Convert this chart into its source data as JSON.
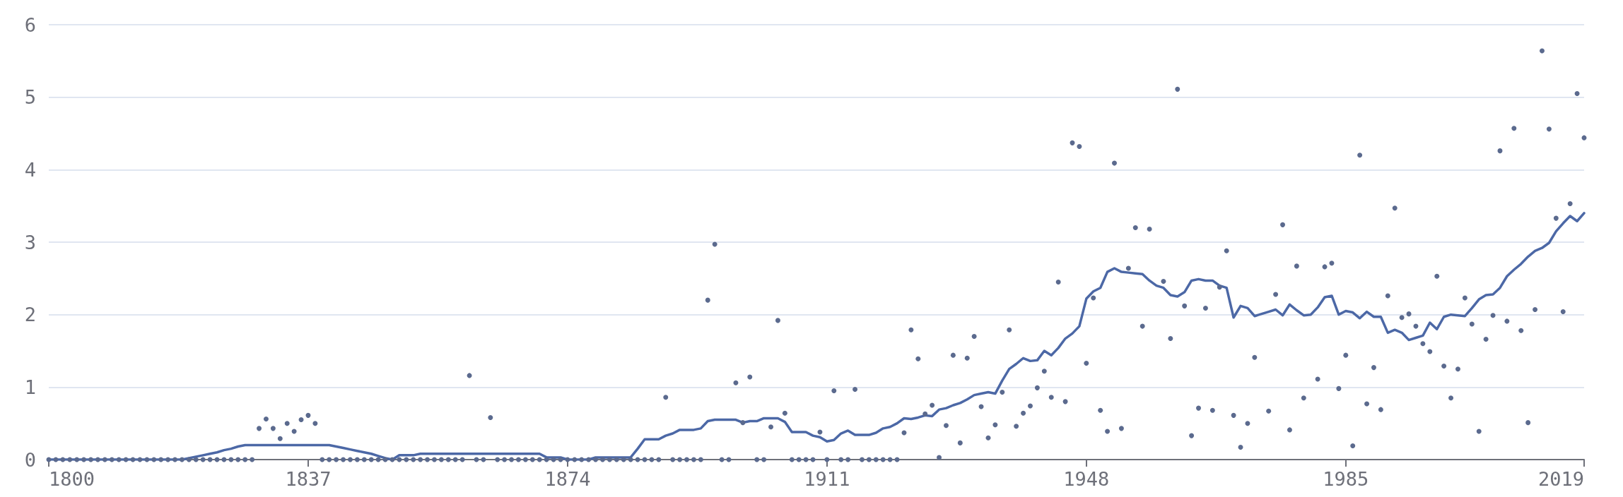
{
  "chart_data": {
    "type": "scatter",
    "x": [
      1800,
      1801,
      1802,
      1803,
      1804,
      1805,
      1806,
      1807,
      1808,
      1809,
      1810,
      1811,
      1812,
      1813,
      1814,
      1815,
      1816,
      1817,
      1818,
      1819,
      1820,
      1821,
      1822,
      1823,
      1824,
      1825,
      1826,
      1827,
      1828,
      1829,
      1830,
      1831,
      1832,
      1833,
      1834,
      1835,
      1836,
      1837,
      1838,
      1839,
      1840,
      1841,
      1842,
      1843,
      1844,
      1845,
      1846,
      1847,
      1848,
      1849,
      1850,
      1851,
      1852,
      1853,
      1854,
      1855,
      1856,
      1857,
      1858,
      1859,
      1860,
      1861,
      1862,
      1863,
      1864,
      1865,
      1866,
      1867,
      1868,
      1869,
      1870,
      1871,
      1872,
      1873,
      1874,
      1875,
      1876,
      1877,
      1878,
      1879,
      1880,
      1881,
      1882,
      1883,
      1884,
      1885,
      1886,
      1887,
      1888,
      1889,
      1890,
      1891,
      1892,
      1893,
      1894,
      1895,
      1896,
      1897,
      1898,
      1899,
      1900,
      1901,
      1902,
      1903,
      1904,
      1905,
      1906,
      1907,
      1908,
      1909,
      1910,
      1911,
      1912,
      1913,
      1914,
      1915,
      1916,
      1917,
      1918,
      1919,
      1920,
      1921,
      1922,
      1923,
      1924,
      1925,
      1926,
      1927,
      1928,
      1929,
      1930,
      1931,
      1932,
      1933,
      1934,
      1935,
      1936,
      1937,
      1938,
      1939,
      1940,
      1941,
      1942,
      1943,
      1944,
      1945,
      1946,
      1947,
      1948,
      1949,
      1950,
      1951,
      1952,
      1953,
      1954,
      1955,
      1956,
      1957,
      1958,
      1959,
      1960,
      1961,
      1962,
      1963,
      1964,
      1965,
      1966,
      1967,
      1968,
      1969,
      1970,
      1971,
      1972,
      1973,
      1974,
      1975,
      1976,
      1977,
      1978,
      1979,
      1980,
      1981,
      1982,
      1983,
      1984,
      1985,
      1986,
      1987,
      1988,
      1989,
      1990,
      1991,
      1992,
      1993,
      1994,
      1995,
      1996,
      1997,
      1998,
      1999,
      2000,
      2001,
      2002,
      2003,
      2004,
      2005,
      2006,
      2007,
      2008,
      2009,
      2010,
      2011,
      2012,
      2013,
      2014,
      2015,
      2016,
      2017,
      2018,
      2019
    ],
    "series": [
      {
        "color": "#5b6a8e",
        "marker": "circle",
        "values": [
          0,
          0,
          0,
          0,
          0,
          0,
          0,
          0,
          0,
          0,
          0,
          0,
          0,
          0,
          0,
          0,
          0,
          0,
          0,
          0,
          0,
          0,
          0,
          0,
          0,
          0,
          0,
          0,
          0,
          0,
          0.43,
          0.56,
          0.43,
          0.29,
          0.5,
          0.39,
          0.55,
          0.61,
          0.5,
          0,
          0,
          0,
          0,
          0,
          0,
          0,
          0,
          0,
          0,
          0,
          0,
          0,
          0,
          0,
          0,
          0,
          0,
          0,
          0,
          0,
          1.16,
          0,
          0,
          0.58,
          0,
          0,
          0,
          0,
          0,
          0,
          0,
          0,
          0,
          0,
          0,
          0,
          0,
          0,
          0,
          0,
          0,
          0,
          0,
          0,
          0,
          0,
          0,
          0,
          0.86,
          0,
          0,
          0,
          0,
          0,
          2.2,
          2.97,
          0,
          0,
          1.06,
          0.51,
          1.14,
          0,
          0,
          0.45,
          1.92,
          0.64,
          0,
          0,
          0,
          0,
          0.38,
          0,
          0.95,
          0,
          0,
          0.97,
          0,
          0,
          0,
          0,
          0,
          0,
          0.37,
          1.79,
          1.39,
          0.63,
          0.75,
          0.03,
          0.47,
          1.44,
          0.23,
          1.4,
          1.7,
          0.73,
          0.3,
          0.48,
          0.93,
          1.79,
          0.46,
          0.64,
          0.74,
          0.99,
          1.22,
          0.86,
          2.45,
          0.8,
          4.37,
          4.32,
          1.33,
          2.23,
          0.68,
          0.39,
          4.09,
          0.43,
          2.64,
          3.2,
          1.84,
          3.18,
          null,
          2.46,
          1.67,
          5.11,
          2.12,
          0.33,
          0.71,
          2.09,
          0.68,
          2.38,
          2.88,
          0.61,
          0.17,
          0.5,
          1.41,
          null,
          0.67,
          2.28,
          3.24,
          0.41,
          2.67,
          0.85,
          null,
          1.11,
          2.66,
          2.71,
          0.98,
          1.44,
          0.19,
          4.2,
          0.77,
          1.27,
          0.69,
          2.26,
          3.47,
          1.96,
          2.01,
          1.84,
          1.6,
          1.49,
          2.53,
          1.29,
          0.85,
          1.25,
          2.23,
          1.87,
          0.39,
          1.66,
          1.99,
          4.26,
          1.91,
          4.57,
          1.78,
          0.51,
          2.07,
          5.64,
          4.56,
          3.33,
          2.04,
          3.53,
          5.05,
          4.44
        ]
      },
      {
        "type": "line",
        "color": "#4c68a6",
        "marker": "none",
        "line_style": "solid",
        "values": [
          0,
          0,
          0,
          0,
          0,
          0,
          0,
          0,
          0,
          0,
          0,
          0,
          0,
          0,
          0,
          0,
          0,
          0,
          0,
          0,
          0.02,
          0.04,
          0.06,
          0.08,
          0.1,
          0.13,
          0.15,
          0.18,
          0.2,
          0.2,
          0.2,
          0.2,
          0.2,
          0.2,
          0.2,
          0.2,
          0.2,
          0.2,
          0.2,
          0.2,
          0.2,
          0.18,
          0.16,
          0.14,
          0.12,
          0.1,
          0.08,
          0.05,
          0.02,
          0,
          0.06,
          0.06,
          0.06,
          0.08,
          0.08,
          0.08,
          0.08,
          0.08,
          0.08,
          0.08,
          0.08,
          0.08,
          0.08,
          0.08,
          0.08,
          0.08,
          0.08,
          0.08,
          0.08,
          0.08,
          0.08,
          0.03,
          0.03,
          0.03,
          0,
          0,
          0,
          0,
          0.03,
          0.03,
          0.03,
          0.03,
          0.03,
          0.03,
          0.15,
          0.28,
          0.28,
          0.28,
          0.33,
          0.36,
          0.41,
          0.41,
          0.41,
          0.43,
          0.53,
          0.55,
          0.55,
          0.55,
          0.55,
          0.51,
          0.53,
          0.53,
          0.57,
          0.57,
          0.57,
          0.52,
          0.38,
          0.38,
          0.38,
          0.33,
          0.31,
          0.25,
          0.27,
          0.36,
          0.4,
          0.34,
          0.34,
          0.34,
          0.37,
          0.43,
          0.45,
          0.5,
          0.57,
          0.56,
          0.58,
          0.61,
          0.6,
          0.69,
          0.71,
          0.75,
          0.78,
          0.83,
          0.89,
          0.91,
          0.93,
          0.91,
          1.09,
          1.25,
          1.32,
          1.4,
          1.36,
          1.37,
          1.5,
          1.44,
          1.54,
          1.67,
          1.74,
          1.84,
          2.22,
          2.32,
          2.37,
          2.59,
          2.64,
          2.59,
          2.58,
          2.57,
          2.56,
          2.47,
          2.4,
          2.37,
          2.27,
          2.25,
          2.31,
          2.47,
          2.49,
          2.47,
          2.47,
          2.4,
          2.37,
          1.96,
          2.12,
          2.09,
          1.98,
          2.01,
          2.04,
          2.07,
          1.99,
          2.14,
          2.06,
          1.99,
          2,
          2.1,
          2.24,
          2.26,
          2,
          2.05,
          2.03,
          1.95,
          2.04,
          1.97,
          1.97,
          1.75,
          1.79,
          1.75,
          1.65,
          1.68,
          1.71,
          1.89,
          1.8,
          1.97,
          2,
          1.99,
          1.98,
          2.09,
          2.21,
          2.27,
          2.28,
          2.37,
          2.53,
          2.62,
          2.7,
          2.8,
          2.88,
          2.92,
          2.99,
          3.15,
          3.26,
          3.36,
          3.29,
          3.4
        ]
      }
    ],
    "xlim": [
      1800,
      2019
    ],
    "xticks": [
      1800,
      1837,
      1874,
      1911,
      1948,
      1985,
      2019
    ],
    "ylim": [
      0,
      6
    ],
    "yticks": [
      0,
      1,
      2,
      3,
      4,
      5,
      6
    ],
    "grid": "y"
  }
}
